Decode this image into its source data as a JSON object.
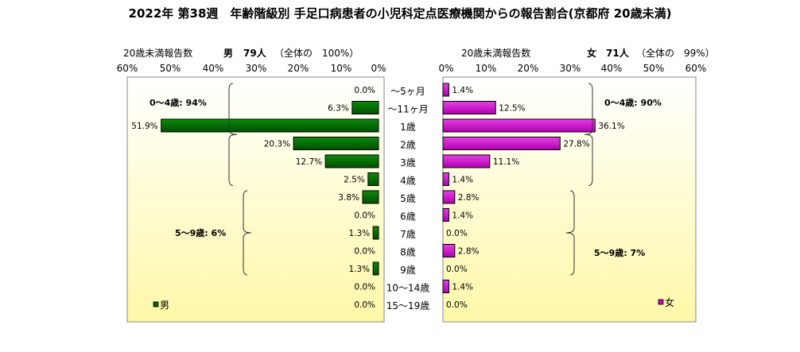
{
  "chart_data": {
    "type": "bar",
    "title": "2022年 第38週　年齢階級別 手足口病患者の小児科定点医療機関からの報告割合(京都府 20歳未満)",
    "categories": [
      "～5ヶ月",
      "～11ヶ月",
      "1歳",
      "2歳",
      "3歳",
      "4歳",
      "5歳",
      "6歳",
      "7歳",
      "8歳",
      "9歳",
      "10～14歳",
      "15～19歳"
    ],
    "xlim": [
      0,
      60
    ],
    "x_ticks": [
      "0%",
      "10%",
      "20%",
      "30%",
      "40%",
      "50%",
      "60%"
    ],
    "left_ticks": [
      "60%",
      "50%",
      "40%",
      "30%",
      "20%",
      "10%",
      "0%"
    ],
    "grid": false,
    "series": [
      {
        "name": "男",
        "side": "left",
        "color": "#006600",
        "header": {
          "label": "20歳未満報告数",
          "sex": "男",
          "count": "79人",
          "share": "（全体の　100%）"
        },
        "values": [
          0.0,
          6.3,
          51.9,
          20.3,
          12.7,
          2.5,
          3.8,
          0.0,
          1.3,
          0.0,
          1.3,
          0.0,
          0.0
        ],
        "labels": [
          "0.0%",
          "6.3%",
          "51.9%",
          "20.3%",
          "12.7%",
          "2.5%",
          "3.8%",
          "0.0%",
          "1.3%",
          "0.0%",
          "1.3%",
          "0.0%",
          "0.0%"
        ],
        "groups": [
          {
            "label": "0～4歳: 94%",
            "from": 0,
            "to": 5
          },
          {
            "label": "5～9歳: 6%",
            "from": 6,
            "to": 10
          }
        ],
        "legend": "男"
      },
      {
        "name": "女",
        "side": "right",
        "color": "#cc00cc",
        "header": {
          "label": "20歳未満報告数",
          "sex": "女",
          "count": "71人",
          "share": "（全体の　99%）"
        },
        "values": [
          1.4,
          12.5,
          36.1,
          27.8,
          11.1,
          1.4,
          2.8,
          1.4,
          0.0,
          2.8,
          0.0,
          1.4,
          0.0
        ],
        "labels": [
          "1.4%",
          "12.5%",
          "36.1%",
          "27.8%",
          "11.1%",
          "1.4%",
          "2.8%",
          "1.4%",
          "0.0%",
          "2.8%",
          "0.0%",
          "1.4%",
          "0.0%"
        ],
        "groups": [
          {
            "label": "0～4歳: 90%",
            "from": 0,
            "to": 5
          },
          {
            "label": "5～9歳: 7%",
            "from": 6,
            "to": 10
          }
        ],
        "legend": "女"
      }
    ],
    "background": "gradient-white-to-yellow"
  }
}
